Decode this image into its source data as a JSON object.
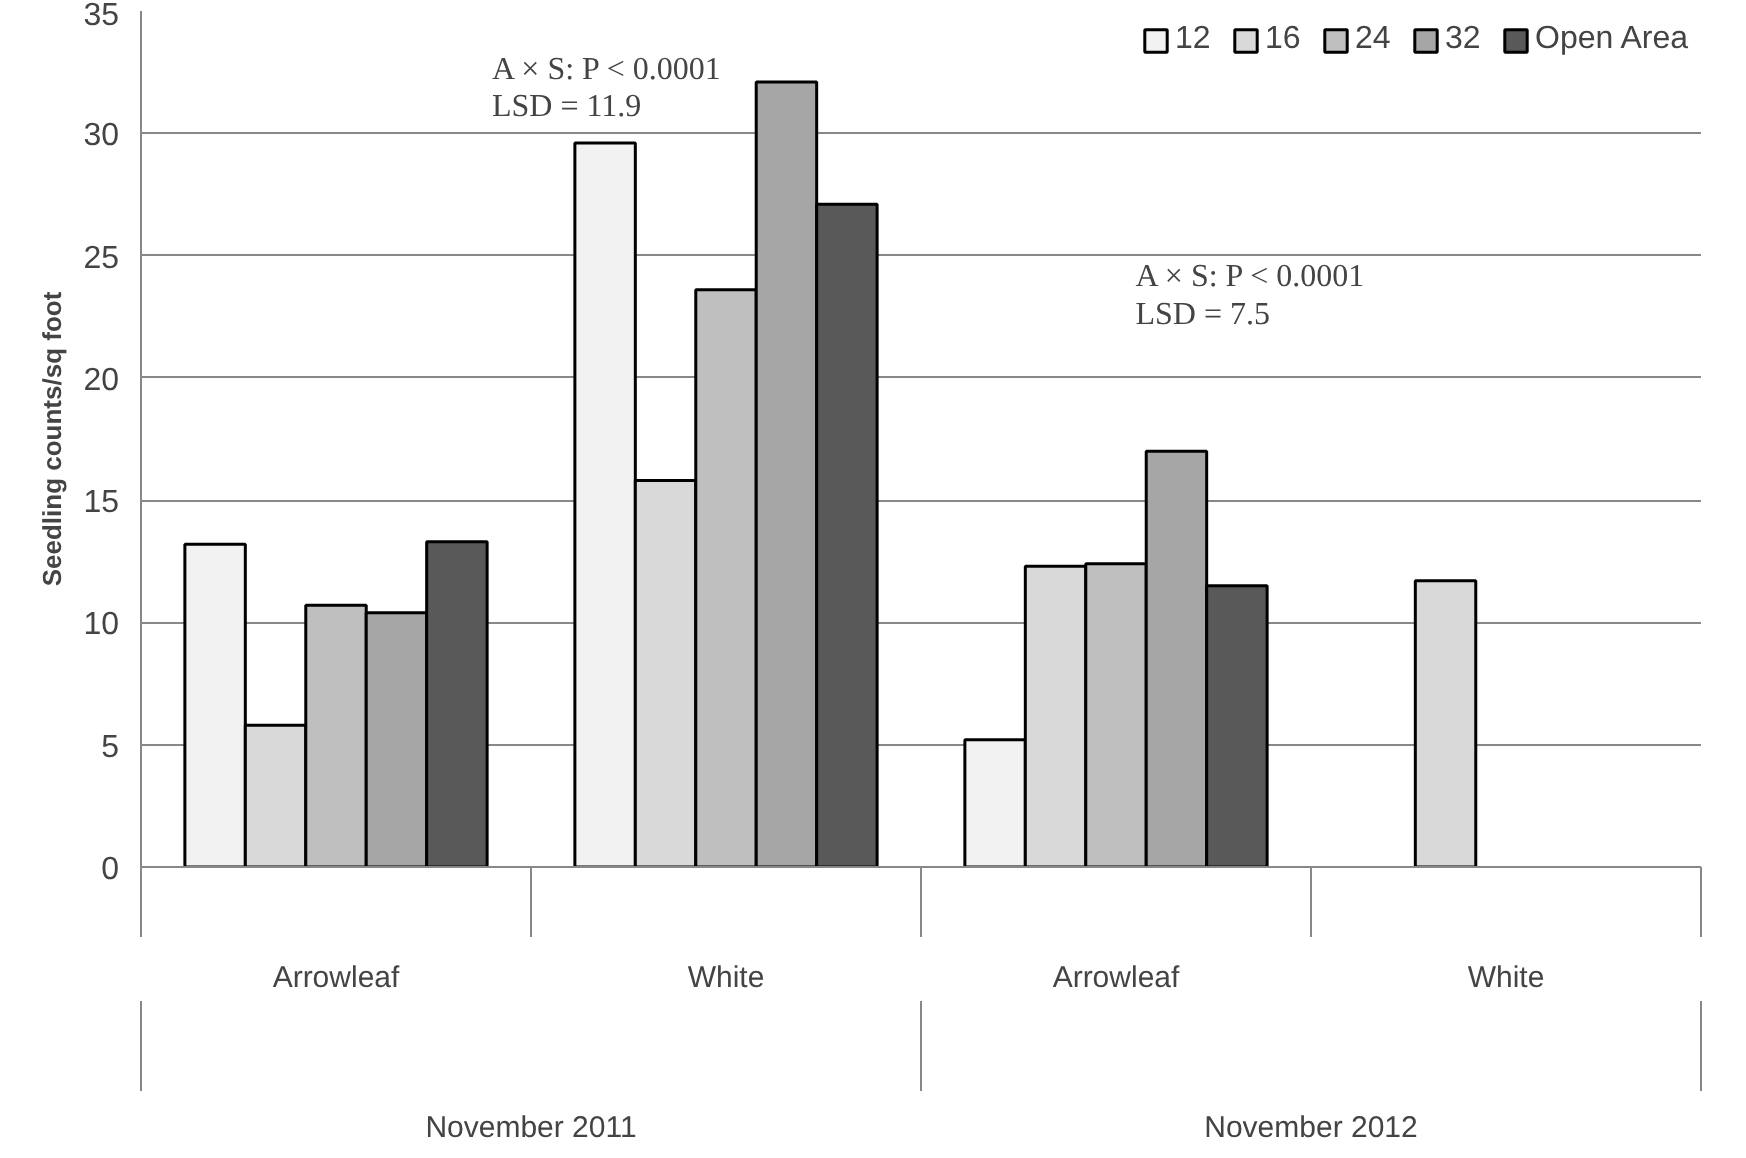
{
  "chart_data": {
    "type": "bar",
    "ylabel": "Seedling counts/sq foot",
    "categories": [
      "Arrowleaf",
      "White",
      "Arrowleaf",
      "White"
    ],
    "series": [
      {
        "name": "12",
        "color": "#f2f2f2",
        "values": [
          13.2,
          29.6,
          5.2,
          null
        ]
      },
      {
        "name": "16",
        "color": "#d9d9d9",
        "values": [
          5.8,
          15.8,
          12.3,
          11.7
        ]
      },
      {
        "name": "24",
        "color": "#bfbfbf",
        "values": [
          10.7,
          23.6,
          12.4,
          null
        ]
      },
      {
        "name": "32",
        "color": "#a6a6a6",
        "values": [
          10.4,
          32.1,
          17.0,
          null
        ]
      },
      {
        "name": "Open Area",
        "color": "#595959",
        "values": [
          13.3,
          27.1,
          11.5,
          null
        ]
      }
    ],
    "annotations": [
      "A × S: P < 0.0001\nLSD = 11.9",
      "A × S: P < 0.0001\nLSD = 7.5",
      "November 2011",
      "November 2012"
    ],
    "ylim": [
      0,
      35
    ],
    "yticks": [
      0,
      5,
      10,
      15,
      20,
      25,
      30,
      35
    ],
    "grid": "y",
    "legend": "top right"
  }
}
